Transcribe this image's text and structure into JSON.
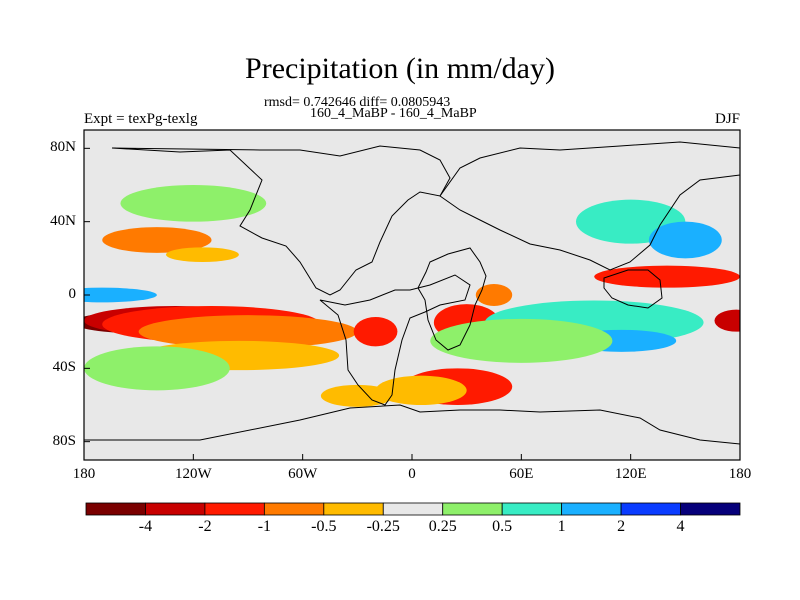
{
  "chart_data": {
    "type": "heatmap",
    "title": "Precipitation (in mm/day)",
    "subtitle": "rmsd= 0.742646 diff= 0.0805943",
    "case_label": "160_4_MaBP - 160_4_MaBP",
    "experiment_label": "Expt = texPg-texlg",
    "season": "DJF",
    "xlim": [
      -180,
      180
    ],
    "ylim": [
      -90,
      90
    ],
    "x_ticks": [
      {
        "value": -180,
        "label": "180"
      },
      {
        "value": -120,
        "label": "120W"
      },
      {
        "value": -60,
        "label": "60W"
      },
      {
        "value": 0,
        "label": "0"
      },
      {
        "value": 60,
        "label": "60E"
      },
      {
        "value": 120,
        "label": "120E"
      },
      {
        "value": 180,
        "label": "180"
      }
    ],
    "y_ticks": [
      {
        "value": 80,
        "label": "80N"
      },
      {
        "value": 40,
        "label": "40N"
      },
      {
        "value": 0,
        "label": "0"
      },
      {
        "value": -40,
        "label": "40S"
      },
      {
        "value": -80,
        "label": "80S"
      }
    ],
    "contour_levels": [
      -4,
      -2,
      -1,
      -0.5,
      -0.25,
      0.25,
      0.5,
      1,
      2,
      4
    ],
    "colorbar_labels": [
      "-4",
      "-2",
      "-1",
      "-0.5",
      "-0.25",
      "0.25",
      "0.5",
      "1",
      "2",
      "4"
    ],
    "colorbar_colors": [
      "#7a0000",
      "#c80000",
      "#ff1a00",
      "#ff7a00",
      "#ffbb00",
      "#e8e8e8",
      "#8ef06a",
      "#38ecc4",
      "#1ab0ff",
      "#0a3cff",
      "#06007a"
    ],
    "field_blobs": [
      {
        "lon": -148,
        "lat": -15,
        "rx": 38,
        "ry": 6,
        "color": "#7a0000"
      },
      {
        "lon": -130,
        "lat": -14,
        "rx": 50,
        "ry": 8,
        "color": "#c80000"
      },
      {
        "lon": -110,
        "lat": -16,
        "rx": 60,
        "ry": 10,
        "color": "#ff1a00"
      },
      {
        "lon": -90,
        "lat": -20,
        "rx": 60,
        "ry": 9,
        "color": "#ff7a00"
      },
      {
        "lon": -95,
        "lat": -33,
        "rx": 55,
        "ry": 8,
        "color": "#ffbb00"
      },
      {
        "lon": -140,
        "lat": 30,
        "rx": 30,
        "ry": 7,
        "color": "#ff7a00"
      },
      {
        "lon": -115,
        "lat": 22,
        "rx": 20,
        "ry": 4,
        "color": "#ffbb00"
      },
      {
        "lon": 25,
        "lat": -50,
        "rx": 30,
        "ry": 10,
        "color": "#ff1a00"
      },
      {
        "lon": 5,
        "lat": -52,
        "rx": 25,
        "ry": 8,
        "color": "#ffbb00"
      },
      {
        "lon": -30,
        "lat": -55,
        "rx": 20,
        "ry": 6,
        "color": "#ffbb00"
      },
      {
        "lon": -20,
        "lat": -20,
        "rx": 12,
        "ry": 8,
        "color": "#ff1a00"
      },
      {
        "lon": 30,
        "lat": -15,
        "rx": 18,
        "ry": 10,
        "color": "#ff1a00"
      },
      {
        "lon": 45,
        "lat": 0,
        "rx": 10,
        "ry": 6,
        "color": "#ff7a00"
      },
      {
        "lon": 140,
        "lat": 10,
        "rx": 40,
        "ry": 6,
        "color": "#ff1a00"
      },
      {
        "lon": 178,
        "lat": -14,
        "rx": 12,
        "ry": 6,
        "color": "#c80000"
      },
      {
        "lon": 120,
        "lat": 40,
        "rx": 30,
        "ry": 12,
        "color": "#38ecc4"
      },
      {
        "lon": 100,
        "lat": -15,
        "rx": 60,
        "ry": 12,
        "color": "#38ecc4"
      },
      {
        "lon": 115,
        "lat": -25,
        "rx": 30,
        "ry": 6,
        "color": "#1ab0ff"
      },
      {
        "lon": 150,
        "lat": 30,
        "rx": 20,
        "ry": 10,
        "color": "#1ab0ff"
      },
      {
        "lon": -170,
        "lat": 0,
        "rx": 30,
        "ry": 4,
        "color": "#1ab0ff"
      },
      {
        "lon": -140,
        "lat": -40,
        "rx": 40,
        "ry": 12,
        "color": "#8ef06a"
      },
      {
        "lon": -120,
        "lat": 50,
        "rx": 40,
        "ry": 10,
        "color": "#8ef06a"
      },
      {
        "lon": 60,
        "lat": -25,
        "rx": 50,
        "ry": 12,
        "color": "#8ef06a"
      }
    ]
  }
}
